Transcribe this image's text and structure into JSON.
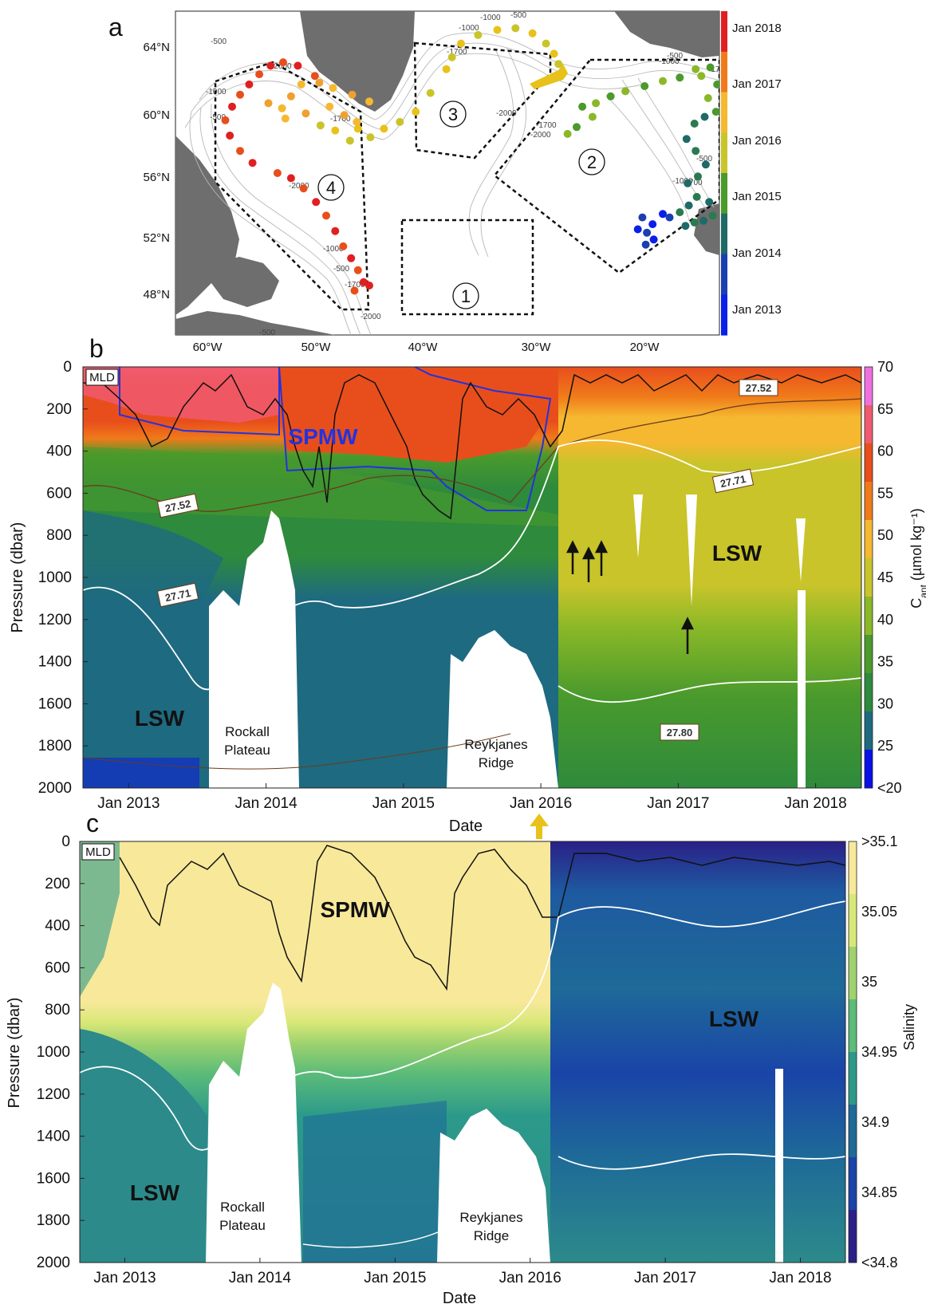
{
  "panel_letters": [
    "a",
    "b",
    "c"
  ],
  "colors": {
    "land": "#6e6e6e",
    "white": "#ffffff",
    "spmw_b": "#2233dd",
    "mld_line": "#111111",
    "isopycnal_white": "#ffffff",
    "isopycnal_brown": "#6b3b1a",
    "arrow_yellow": "#e8c21a"
  },
  "chart_data": [
    {
      "type": "scatter",
      "panel": "a",
      "title": "",
      "xticks": [
        "60°W",
        "50°W",
        "40°W",
        "30°W",
        "20°W"
      ],
      "yticks": [
        "64°N",
        "60°N",
        "56°N",
        "52°N",
        "48°N"
      ],
      "xlim": [
        -64,
        -16
      ],
      "ylim": [
        46.5,
        65.5
      ],
      "grid": false,
      "legend": "colorbar-right",
      "colorbar": {
        "labels": [
          "Jan 2018",
          "Jan 2017",
          "Jan 2016",
          "Jan 2015",
          "Jan 2014",
          "Jan 2013"
        ],
        "colors": [
          "#e02020",
          "#f07a1a",
          "#f5b830",
          "#c8c42a",
          "#4a9a2c",
          "#1e6a66",
          "#1a3fb0",
          "#0a20e8"
        ]
      },
      "regions": [
        "1",
        "2",
        "3",
        "4"
      ],
      "contour_labels": [
        "-500",
        "-1000",
        "-1700",
        "-2000",
        "-500",
        "-1000",
        "-2000",
        "-1700",
        "-500",
        "-1000",
        "-1700",
        "-2000",
        "-1000",
        "-500",
        "-2000",
        "-1700",
        "-1000",
        "-500",
        "-1700",
        "-500",
        "-2000",
        "-1000",
        "-1700",
        "-500"
      ],
      "series": [
        {
          "values": [
            [
              -23.2,
              52.7
            ],
            [
              -22.4,
              52.5
            ],
            [
              -21.9,
              53.0
            ],
            [
              -22.8,
              53.4
            ],
            [
              -21.0,
              53.6
            ],
            [
              -20.4,
              53.4
            ],
            [
              -21.8,
              52.1
            ],
            [
              -22.5,
              51.8
            ]
          ]
        },
        {
          "values": [
            [
              -19.0,
              52.9
            ],
            [
              -18.2,
              53.1
            ],
            [
              -17.4,
              53.2
            ],
            [
              -16.6,
              53.5
            ],
            [
              -16.9,
              54.3
            ],
            [
              -18.0,
              54.6
            ],
            [
              -18.7,
              54.1
            ],
            [
              -19.5,
              53.7
            ],
            [
              -18.8,
              55.4
            ],
            [
              -17.9,
              55.8
            ],
            [
              -17.2,
              56.5
            ],
            [
              -18.1,
              57.3
            ],
            [
              -18.9,
              58.0
            ],
            [
              -18.2,
              58.9
            ],
            [
              -17.3,
              59.3
            ]
          ]
        },
        {
          "values": [
            [
              -16.3,
              59.6
            ],
            [
              -17.0,
              60.4
            ],
            [
              -16.2,
              61.2
            ],
            [
              -17.6,
              61.7
            ],
            [
              -16.8,
              62.2
            ],
            [
              -18.1,
              62.1
            ],
            [
              -19.5,
              61.6
            ],
            [
              -21.0,
              61.4
            ],
            [
              -22.6,
              61.1
            ],
            [
              -24.3,
              60.8
            ],
            [
              -25.6,
              60.5
            ],
            [
              -26.9,
              60.1
            ],
            [
              -28.1,
              59.9
            ],
            [
              -27.2,
              59.3
            ],
            [
              -28.6,
              58.7
            ],
            [
              -29.4,
              58.3
            ]
          ]
        },
        {
          "values": [
            [
              -30.2,
              62.4
            ],
            [
              -30.6,
              63.0
            ],
            [
              -31.3,
              63.6
            ],
            [
              -32.5,
              64.2
            ],
            [
              -34.0,
              64.5
            ],
            [
              -35.6,
              64.4
            ],
            [
              -37.3,
              64.1
            ],
            [
              -38.8,
              63.6
            ],
            [
              -39.6,
              62.8
            ],
            [
              -40.1,
              62.1
            ],
            [
              -41.5,
              60.7
            ],
            [
              -42.8,
              59.6
            ],
            [
              -44.2,
              59.0
            ],
            [
              -45.6,
              58.6
            ],
            [
              -46.8,
              58.1
            ],
            [
              -47.9,
              58.6
            ],
            [
              -48.6,
              57.9
            ],
            [
              -49.9,
              58.5
            ],
            [
              -51.2,
              58.8
            ]
          ]
        },
        {
          "values": [
            [
              -46.9,
              60.2
            ],
            [
              -48.4,
              60.6
            ],
            [
              -50.1,
              61.0
            ],
            [
              -51.3,
              61.3
            ],
            [
              -52.9,
              61.2
            ],
            [
              -53.8,
              60.5
            ],
            [
              -54.6,
              59.8
            ],
            [
              -55.8,
              60.1
            ],
            [
              -54.3,
              59.2
            ],
            [
              -52.5,
              59.5
            ],
            [
              -50.4,
              59.9
            ],
            [
              -49.1,
              59.4
            ],
            [
              -48.0,
              59.0
            ]
          ]
        },
        {
          "values": [
            [
              -51.7,
              61.7
            ],
            [
              -53.2,
              62.3
            ],
            [
              -54.5,
              62.5
            ],
            [
              -55.6,
              62.3
            ],
            [
              -56.6,
              61.8
            ],
            [
              -57.5,
              61.2
            ],
            [
              -58.3,
              60.6
            ],
            [
              -59.0,
              59.9
            ],
            [
              -59.6,
              59.1
            ],
            [
              -59.2,
              58.2
            ],
            [
              -58.3,
              57.3
            ],
            [
              -57.2,
              56.6
            ],
            [
              -55.0,
              56.0
            ],
            [
              -53.8,
              55.7
            ],
            [
              -52.7,
              55.1
            ],
            [
              -51.6,
              54.3
            ],
            [
              -50.7,
              53.5
            ],
            [
              -49.9,
              52.6
            ],
            [
              -49.2,
              51.7
            ],
            [
              -48.5,
              51.0
            ],
            [
              -47.9,
              50.3
            ],
            [
              -47.4,
              49.6
            ],
            [
              -48.2,
              49.1
            ],
            [
              -46.9,
              49.4
            ]
          ]
        }
      ]
    },
    {
      "type": "heatmap",
      "panel": "b",
      "title": "",
      "xlabel": "Date",
      "ylabel": "Pressure (dbar)",
      "xlim": [
        "2012-09",
        "2018-05"
      ],
      "ylim": [
        2000,
        0
      ],
      "x_ticks": [
        "Jan 2013",
        "Jan 2014",
        "Jan 2015",
        "Jan 2016",
        "Jan 2017",
        "Jan 2018"
      ],
      "y_ticks": [
        0,
        200,
        400,
        600,
        800,
        1000,
        1200,
        1400,
        1600,
        1800,
        2000
      ],
      "colorbar_label": "C",
      "colorbar_label_sub": "ant",
      "colorbar_label_rest": " (µmol kg⁻¹)",
      "colorbar_ticks": [
        "70",
        "65",
        "60",
        "55",
        "50",
        "45",
        "40",
        "35",
        "30",
        "25",
        "<20"
      ],
      "colorbar_colors": [
        "#f070e0",
        "#f05a6e",
        "#e84e1c",
        "#f07a1a",
        "#f5b830",
        "#c8c42a",
        "#8ab828",
        "#4a9a2c",
        "#2e8a3c",
        "#1e6a80",
        "#0a10e8"
      ],
      "labels": {
        "mld": "MLD",
        "spmw": "SPMW",
        "lsw_top": "LSW",
        "lsw_bottom": "LSW",
        "rockall": [
          "Rockall",
          "Plateau"
        ],
        "reykjanes": [
          "Reykjanes",
          "Ridge"
        ]
      },
      "isopycnal_labels": [
        "27.52",
        "27.71",
        "27.52",
        "27.71",
        "27.80"
      ]
    },
    {
      "type": "heatmap",
      "panel": "c",
      "title": "",
      "xlabel": "Date",
      "ylabel": "Pressure (dbar)",
      "xlim": [
        "2012-09",
        "2018-05"
      ],
      "ylim": [
        2000,
        0
      ],
      "x_ticks": [
        "Jan 2013",
        "Jan 2014",
        "Jan 2015",
        "Jan 2016",
        "Jan 2017",
        "Jan 2018"
      ],
      "y_ticks": [
        0,
        200,
        400,
        600,
        800,
        1000,
        1200,
        1400,
        1600,
        1800,
        2000
      ],
      "colorbar_label": "Salinity",
      "colorbar_ticks": [
        ">35.1",
        "35.05",
        "35",
        "34.95",
        "34.9",
        "34.85",
        "<34.8"
      ],
      "colorbar_colors": [
        "#f8e89a",
        "#d8e878",
        "#9ed26e",
        "#5cbc78",
        "#2c9a8a",
        "#1e6a98",
        "#1a44a8",
        "#2a2088"
      ],
      "labels": {
        "mld": "MLD",
        "spmw": "SPMW",
        "lsw_top": "LSW",
        "lsw_bottom": "LSW",
        "rockall": [
          "Rockall",
          "Plateau"
        ],
        "reykjanes": [
          "Reykjanes",
          "Ridge"
        ]
      }
    }
  ]
}
